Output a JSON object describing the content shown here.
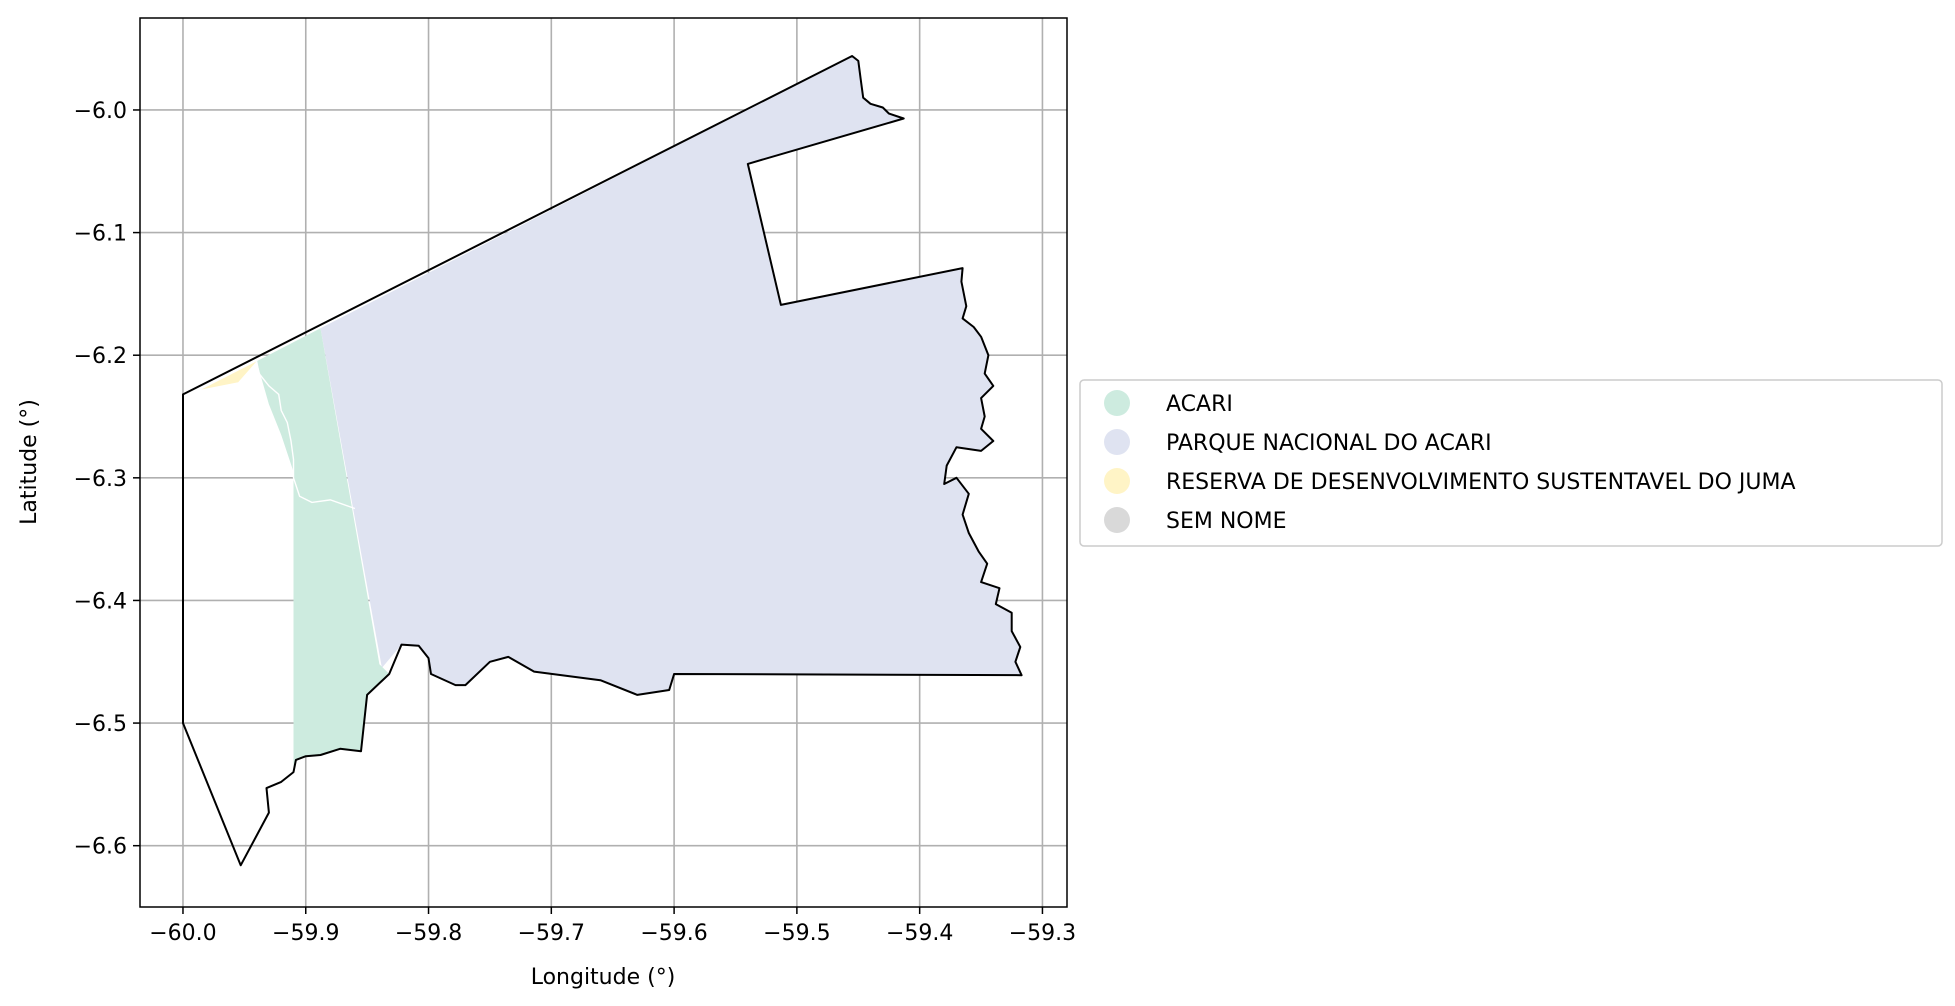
{
  "chart_data": {
    "type": "map",
    "xlabel": "Longitude (°)",
    "ylabel": "Latitude (°)",
    "xlim": [
      -60.035,
      -59.28
    ],
    "ylim": [
      -6.65,
      -5.925
    ],
    "x_ticks": [
      -60.0,
      -59.9,
      -59.8,
      -59.7,
      -59.6,
      -59.5,
      -59.4,
      -59.3
    ],
    "y_ticks": [
      -6.0,
      -6.1,
      -6.2,
      -6.3,
      -6.4,
      -6.5,
      -6.6
    ],
    "x_tick_labels": [
      "−60.0",
      "−59.9",
      "−59.8",
      "−59.7",
      "−59.6",
      "−59.5",
      "−59.4",
      "−59.3"
    ],
    "y_tick_labels": [
      "−6.0",
      "−6.1",
      "−6.2",
      "−6.3",
      "−6.4",
      "−6.5",
      "−6.6"
    ],
    "grid": true,
    "legend_position": "right",
    "legend": [
      {
        "name": "ACARI",
        "color": "#cdebdf"
      },
      {
        "name": "PARQUE NACIONAL DO ACARI",
        "color": "#dfe3f1"
      },
      {
        "name": "RESERVA DE DESENVOLVIMENTO SUSTENTAVEL DO JUMA",
        "color": "#fff4c6"
      },
      {
        "name": "SEM NOME",
        "color": "#d9d9d9"
      }
    ],
    "regions": [
      {
        "name": "PARQUE NACIONAL DO ACARI",
        "color": "#dfe3f1",
        "outline": false,
        "coords": [
          [
            -59.888,
            -6.178
          ],
          [
            -59.455,
            -5.956
          ],
          [
            -59.45,
            -5.96
          ],
          [
            -59.448,
            -5.975
          ],
          [
            -59.446,
            -5.99
          ],
          [
            -59.44,
            -5.995
          ],
          [
            -59.43,
            -5.998
          ],
          [
            -59.425,
            -6.003
          ],
          [
            -59.413,
            -6.007
          ],
          [
            -59.54,
            -6.044
          ],
          [
            -59.513,
            -6.159
          ],
          [
            -59.365,
            -6.129
          ],
          [
            -59.366,
            -6.14
          ],
          [
            -59.362,
            -6.16
          ],
          [
            -59.365,
            -6.17
          ],
          [
            -59.356,
            -6.177
          ],
          [
            -59.35,
            -6.185
          ],
          [
            -59.344,
            -6.2
          ],
          [
            -59.347,
            -6.215
          ],
          [
            -59.34,
            -6.225
          ],
          [
            -59.35,
            -6.235
          ],
          [
            -59.347,
            -6.25
          ],
          [
            -59.35,
            -6.26
          ],
          [
            -59.34,
            -6.27
          ],
          [
            -59.35,
            -6.278
          ],
          [
            -59.37,
            -6.275
          ],
          [
            -59.378,
            -6.29
          ],
          [
            -59.38,
            -6.305
          ],
          [
            -59.37,
            -6.3
          ],
          [
            -59.36,
            -6.313
          ],
          [
            -59.365,
            -6.33
          ],
          [
            -59.36,
            -6.345
          ],
          [
            -59.352,
            -6.36
          ],
          [
            -59.345,
            -6.37
          ],
          [
            -59.35,
            -6.385
          ],
          [
            -59.335,
            -6.39
          ],
          [
            -59.338,
            -6.403
          ],
          [
            -59.325,
            -6.41
          ],
          [
            -59.325,
            -6.425
          ],
          [
            -59.318,
            -6.438
          ],
          [
            -59.322,
            -6.45
          ],
          [
            -59.317,
            -6.461
          ],
          [
            -59.6,
            -6.46
          ],
          [
            -59.604,
            -6.473
          ],
          [
            -59.63,
            -6.477
          ],
          [
            -59.66,
            -6.465
          ],
          [
            -59.714,
            -6.458
          ],
          [
            -59.735,
            -6.446
          ],
          [
            -59.75,
            -6.45
          ],
          [
            -59.77,
            -6.469
          ],
          [
            -59.778,
            -6.469
          ],
          [
            -59.798,
            -6.46
          ],
          [
            -59.8,
            -6.447
          ],
          [
            -59.808,
            -6.437
          ],
          [
            -59.822,
            -6.436
          ],
          [
            -59.838,
            -6.455
          ]
        ]
      },
      {
        "name": "ACARI",
        "color": "#cdebdf",
        "outline": false,
        "coords": [
          [
            -59.94,
            -6.205
          ],
          [
            -59.888,
            -6.178
          ],
          [
            -59.84,
            -6.452
          ],
          [
            -59.832,
            -6.46
          ],
          [
            -59.85,
            -6.477
          ],
          [
            -59.855,
            -6.523
          ],
          [
            -59.872,
            -6.521
          ],
          [
            -59.888,
            -6.526
          ],
          [
            -59.9,
            -6.527
          ],
          [
            -59.908,
            -6.53
          ],
          [
            -59.91,
            -6.54
          ],
          [
            -59.91,
            -6.295
          ],
          [
            -59.92,
            -6.265
          ],
          [
            -59.93,
            -6.24
          ]
        ]
      },
      {
        "name": "RESERVA DE DESENVOLVIMENTO SUSTENTAVEL DO JUMA",
        "color": "#fff4c6",
        "outline": false,
        "coords": [
          [
            -59.985,
            -6.228
          ],
          [
            -59.94,
            -6.205
          ],
          [
            -59.955,
            -6.222
          ]
        ]
      }
    ],
    "boundary": {
      "stroke": "#000000",
      "coords": [
        [
          -60.0,
          -6.232
        ],
        [
          -59.455,
          -5.956
        ],
        [
          -59.45,
          -5.96
        ],
        [
          -59.448,
          -5.975
        ],
        [
          -59.446,
          -5.99
        ],
        [
          -59.44,
          -5.995
        ],
        [
          -59.43,
          -5.998
        ],
        [
          -59.425,
          -6.003
        ],
        [
          -59.413,
          -6.007
        ],
        [
          -59.54,
          -6.044
        ],
        [
          -59.513,
          -6.159
        ],
        [
          -59.365,
          -6.129
        ],
        [
          -59.366,
          -6.14
        ],
        [
          -59.362,
          -6.16
        ],
        [
          -59.365,
          -6.17
        ],
        [
          -59.356,
          -6.177
        ],
        [
          -59.35,
          -6.185
        ],
        [
          -59.344,
          -6.2
        ],
        [
          -59.347,
          -6.215
        ],
        [
          -59.34,
          -6.225
        ],
        [
          -59.35,
          -6.235
        ],
        [
          -59.347,
          -6.25
        ],
        [
          -59.35,
          -6.26
        ],
        [
          -59.34,
          -6.27
        ],
        [
          -59.35,
          -6.278
        ],
        [
          -59.37,
          -6.275
        ],
        [
          -59.378,
          -6.29
        ],
        [
          -59.38,
          -6.305
        ],
        [
          -59.37,
          -6.3
        ],
        [
          -59.36,
          -6.313
        ],
        [
          -59.365,
          -6.33
        ],
        [
          -59.36,
          -6.345
        ],
        [
          -59.352,
          -6.36
        ],
        [
          -59.345,
          -6.37
        ],
        [
          -59.35,
          -6.385
        ],
        [
          -59.335,
          -6.39
        ],
        [
          -59.338,
          -6.403
        ],
        [
          -59.325,
          -6.41
        ],
        [
          -59.325,
          -6.425
        ],
        [
          -59.318,
          -6.438
        ],
        [
          -59.322,
          -6.45
        ],
        [
          -59.317,
          -6.461
        ],
        [
          -59.6,
          -6.46
        ],
        [
          -59.604,
          -6.473
        ],
        [
          -59.63,
          -6.477
        ],
        [
          -59.66,
          -6.465
        ],
        [
          -59.714,
          -6.458
        ],
        [
          -59.735,
          -6.446
        ],
        [
          -59.75,
          -6.45
        ],
        [
          -59.77,
          -6.469
        ],
        [
          -59.778,
          -6.469
        ],
        [
          -59.798,
          -6.46
        ],
        [
          -59.8,
          -6.447
        ],
        [
          -59.808,
          -6.437
        ],
        [
          -59.822,
          -6.436
        ],
        [
          -59.832,
          -6.46
        ],
        [
          -59.85,
          -6.477
        ],
        [
          -59.855,
          -6.523
        ],
        [
          -59.872,
          -6.521
        ],
        [
          -59.888,
          -6.526
        ],
        [
          -59.9,
          -6.527
        ],
        [
          -59.908,
          -6.53
        ],
        [
          -59.91,
          -6.54
        ],
        [
          -59.92,
          -6.548
        ],
        [
          -59.932,
          -6.553
        ],
        [
          -59.93,
          -6.573
        ],
        [
          -59.953,
          -6.616
        ],
        [
          -60.0,
          -6.5
        ]
      ]
    },
    "river": {
      "stroke": "#ffffff",
      "coords": [
        [
          -59.94,
          -6.205
        ],
        [
          -59.938,
          -6.215
        ],
        [
          -59.93,
          -6.225
        ],
        [
          -59.922,
          -6.232
        ],
        [
          -59.92,
          -6.245
        ],
        [
          -59.915,
          -6.255
        ],
        [
          -59.912,
          -6.27
        ],
        [
          -59.91,
          -6.285
        ],
        [
          -59.91,
          -6.3
        ],
        [
          -59.905,
          -6.315
        ],
        [
          -59.895,
          -6.32
        ],
        [
          -59.88,
          -6.318
        ],
        [
          -59.86,
          -6.325
        ]
      ]
    }
  }
}
